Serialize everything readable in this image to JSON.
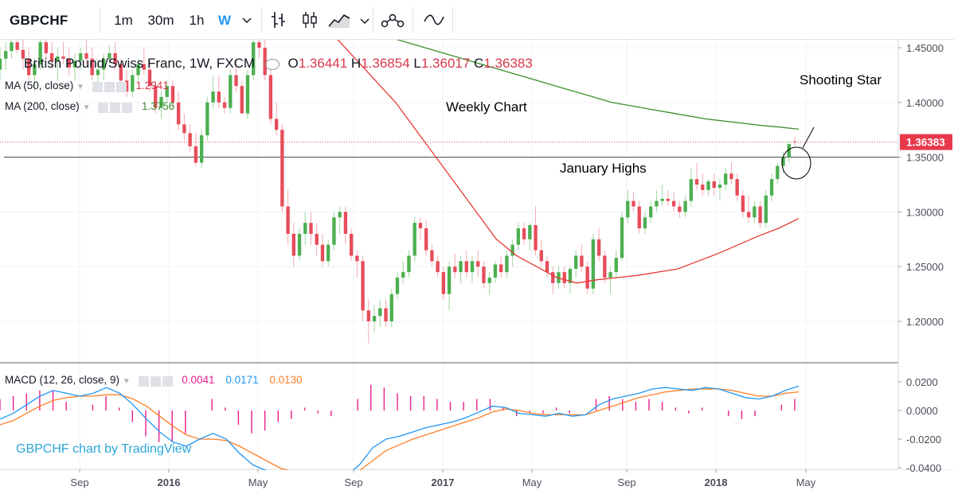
{
  "toolbar": {
    "symbol": "GBPCHF",
    "intervals": [
      "1m",
      "30m",
      "1h",
      "W"
    ],
    "active_interval": "W",
    "icons": [
      "chevron-down-icon",
      "bar-style-icon",
      "candle-style-icon",
      "area-style-icon",
      "chevron-down-icon",
      "indicators-icon",
      "compare-icon"
    ]
  },
  "legend": {
    "title": "British Pound/Swiss Franc, 1W, FXCM",
    "open_label": "O",
    "open": "1.36441",
    "high_label": "H",
    "high": "1.36854",
    "low_label": "L",
    "low": "1.36017",
    "close_label": "C",
    "close": "1.36383",
    "ma50_label": "MA (50, close)",
    "ma50_value": "1.2941",
    "ma200_label": "MA (200, close)",
    "ma200_value": "1.3756",
    "macd_label": "MACD (12, 26, close, 9)",
    "macd_hist": "0.0041",
    "macd_line": "0.0171",
    "macd_signal": "0.0130"
  },
  "annotations": {
    "weekly": "Weekly Chart",
    "star": "Shooting Star",
    "highs": "January Highs"
  },
  "watermark": "GBPCHF chart by TradingView",
  "colors": {
    "up": "#4caf50",
    "down": "#e74c5a",
    "ma50": "#e53935",
    "ma200": "#3e8e2b",
    "macd": "#2196f3",
    "signal": "#ff7f27",
    "hist": "#e91e8c",
    "price_label_bg": "#e8394b"
  },
  "chart_data": {
    "type": "candlestick",
    "price_axis": {
      "ticks": [
        "1.45000",
        "1.40000",
        "1.35000",
        "1.30000",
        "1.25000",
        "1.20000"
      ],
      "range": [
        1.16,
        1.45
      ],
      "last_price": "1.36383"
    },
    "macd_axis": {
      "ticks": [
        "0.0200",
        "0.0000",
        "-0.0200",
        "-0.0400"
      ],
      "range": [
        -0.04,
        0.025
      ]
    },
    "time_labels": [
      "Sep",
      "2016",
      "May",
      "Sep",
      "2017",
      "May",
      "Sep",
      "2018",
      "May"
    ],
    "horizontal_level": 1.35,
    "candles": [
      [
        1.43,
        1.451,
        1.42,
        1.44
      ],
      [
        1.44,
        1.455,
        1.43,
        1.447
      ],
      [
        1.447,
        1.46,
        1.44,
        1.455
      ],
      [
        1.455,
        1.47,
        1.445,
        1.448
      ],
      [
        1.448,
        1.462,
        1.43,
        1.44
      ],
      [
        1.44,
        1.45,
        1.42,
        1.425
      ],
      [
        1.425,
        1.44,
        1.41,
        1.435
      ],
      [
        1.435,
        1.46,
        1.43,
        1.455
      ],
      [
        1.455,
        1.47,
        1.44,
        1.445
      ],
      [
        1.445,
        1.455,
        1.43,
        1.438
      ],
      [
        1.438,
        1.45,
        1.42,
        1.442
      ],
      [
        1.442,
        1.455,
        1.435,
        1.44
      ],
      [
        1.44,
        1.45,
        1.425,
        1.432
      ],
      [
        1.432,
        1.445,
        1.42,
        1.438
      ],
      [
        1.438,
        1.45,
        1.43,
        1.445
      ],
      [
        1.445,
        1.46,
        1.435,
        1.44
      ],
      [
        1.44,
        1.45,
        1.42,
        1.425
      ],
      [
        1.425,
        1.44,
        1.41,
        1.43
      ],
      [
        1.43,
        1.445,
        1.42,
        1.44
      ],
      [
        1.44,
        1.452,
        1.435,
        1.445
      ],
      [
        1.445,
        1.455,
        1.43,
        1.435
      ],
      [
        1.435,
        1.44,
        1.415,
        1.42
      ],
      [
        1.42,
        1.43,
        1.405,
        1.41
      ],
      [
        1.41,
        1.43,
        1.405,
        1.425
      ],
      [
        1.425,
        1.44,
        1.42,
        1.435
      ],
      [
        1.435,
        1.45,
        1.425,
        1.43
      ],
      [
        1.43,
        1.44,
        1.41,
        1.415
      ],
      [
        1.415,
        1.42,
        1.39,
        1.395
      ],
      [
        1.395,
        1.41,
        1.385,
        1.405
      ],
      [
        1.405,
        1.42,
        1.4,
        1.415
      ],
      [
        1.415,
        1.42,
        1.395,
        1.4
      ],
      [
        1.4,
        1.41,
        1.375,
        1.38
      ],
      [
        1.38,
        1.39,
        1.365,
        1.372
      ],
      [
        1.372,
        1.38,
        1.355,
        1.36
      ],
      [
        1.36,
        1.372,
        1.342,
        1.345
      ],
      [
        1.345,
        1.375,
        1.34,
        1.37
      ],
      [
        1.37,
        1.405,
        1.365,
        1.4
      ],
      [
        1.4,
        1.425,
        1.395,
        1.41
      ],
      [
        1.41,
        1.425,
        1.395,
        1.4
      ],
      [
        1.4,
        1.405,
        1.39,
        1.395
      ],
      [
        1.395,
        1.43,
        1.39,
        1.425
      ],
      [
        1.425,
        1.44,
        1.41,
        1.415
      ],
      [
        1.415,
        1.42,
        1.39,
        1.39
      ],
      [
        1.39,
        1.43,
        1.385,
        1.425
      ],
      [
        1.425,
        1.46,
        1.42,
        1.455
      ],
      [
        1.455,
        1.465,
        1.44,
        1.45
      ],
      [
        1.45,
        1.46,
        1.42,
        1.425
      ],
      [
        1.425,
        1.43,
        1.38,
        1.385
      ],
      [
        1.385,
        1.4,
        1.37,
        1.375
      ],
      [
        1.375,
        1.38,
        1.3,
        1.305
      ],
      [
        1.305,
        1.32,
        1.27,
        1.28
      ],
      [
        1.28,
        1.29,
        1.25,
        1.26
      ],
      [
        1.26,
        1.285,
        1.255,
        1.28
      ],
      [
        1.28,
        1.3,
        1.27,
        1.29
      ],
      [
        1.29,
        1.3,
        1.27,
        1.28
      ],
      [
        1.28,
        1.29,
        1.26,
        1.27
      ],
      [
        1.27,
        1.28,
        1.25,
        1.255
      ],
      [
        1.255,
        1.275,
        1.25,
        1.27
      ],
      [
        1.27,
        1.3,
        1.265,
        1.295
      ],
      [
        1.295,
        1.305,
        1.28,
        1.3
      ],
      [
        1.3,
        1.305,
        1.27,
        1.28
      ],
      [
        1.28,
        1.285,
        1.255,
        1.26
      ],
      [
        1.26,
        1.265,
        1.24,
        1.255
      ],
      [
        1.255,
        1.26,
        1.2,
        1.21
      ],
      [
        1.21,
        1.22,
        1.18,
        1.2
      ],
      [
        1.2,
        1.215,
        1.19,
        1.205
      ],
      [
        1.205,
        1.22,
        1.195,
        1.212
      ],
      [
        1.212,
        1.22,
        1.195,
        1.2
      ],
      [
        1.2,
        1.23,
        1.195,
        1.225
      ],
      [
        1.225,
        1.245,
        1.22,
        1.24
      ],
      [
        1.24,
        1.255,
        1.235,
        1.245
      ],
      [
        1.245,
        1.265,
        1.24,
        1.26
      ],
      [
        1.26,
        1.295,
        1.255,
        1.29
      ],
      [
        1.29,
        1.295,
        1.275,
        1.285
      ],
      [
        1.285,
        1.292,
        1.26,
        1.265
      ],
      [
        1.265,
        1.27,
        1.25,
        1.255
      ],
      [
        1.255,
        1.26,
        1.24,
        1.245
      ],
      [
        1.245,
        1.25,
        1.22,
        1.225
      ],
      [
        1.225,
        1.255,
        1.21,
        1.25
      ],
      [
        1.25,
        1.262,
        1.24,
        1.245
      ],
      [
        1.245,
        1.26,
        1.235,
        1.255
      ],
      [
        1.255,
        1.265,
        1.24,
        1.245
      ],
      [
        1.245,
        1.26,
        1.235,
        1.255
      ],
      [
        1.255,
        1.265,
        1.24,
        1.25
      ],
      [
        1.25,
        1.255,
        1.23,
        1.235
      ],
      [
        1.235,
        1.245,
        1.225,
        1.24
      ],
      [
        1.24,
        1.255,
        1.235,
        1.252
      ],
      [
        1.252,
        1.26,
        1.24,
        1.245
      ],
      [
        1.245,
        1.265,
        1.24,
        1.26
      ],
      [
        1.26,
        1.275,
        1.25,
        1.27
      ],
      [
        1.27,
        1.29,
        1.265,
        1.285
      ],
      [
        1.285,
        1.29,
        1.27,
        1.275
      ],
      [
        1.275,
        1.29,
        1.265,
        1.288
      ],
      [
        1.288,
        1.305,
        1.26,
        1.265
      ],
      [
        1.265,
        1.275,
        1.25,
        1.255
      ],
      [
        1.255,
        1.26,
        1.24,
        1.245
      ],
      [
        1.245,
        1.25,
        1.225,
        1.235
      ],
      [
        1.235,
        1.25,
        1.23,
        1.245
      ],
      [
        1.245,
        1.25,
        1.23,
        1.235
      ],
      [
        1.235,
        1.25,
        1.225,
        1.248
      ],
      [
        1.248,
        1.265,
        1.24,
        1.26
      ],
      [
        1.26,
        1.27,
        1.245,
        1.25
      ],
      [
        1.25,
        1.255,
        1.225,
        1.23
      ],
      [
        1.23,
        1.28,
        1.225,
        1.275
      ],
      [
        1.275,
        1.285,
        1.255,
        1.26
      ],
      [
        1.26,
        1.265,
        1.235,
        1.24
      ],
      [
        1.24,
        1.25,
        1.225,
        1.245
      ],
      [
        1.245,
        1.265,
        1.24,
        1.258
      ],
      [
        1.258,
        1.3,
        1.255,
        1.295
      ],
      [
        1.295,
        1.32,
        1.29,
        1.31
      ],
      [
        1.31,
        1.318,
        1.3,
        1.305
      ],
      [
        1.305,
        1.31,
        1.28,
        1.285
      ],
      [
        1.285,
        1.3,
        1.28,
        1.295
      ],
      [
        1.295,
        1.31,
        1.29,
        1.305
      ],
      [
        1.305,
        1.32,
        1.3,
        1.31
      ],
      [
        1.31,
        1.325,
        1.305,
        1.312
      ],
      [
        1.312,
        1.32,
        1.305,
        1.31
      ],
      [
        1.31,
        1.318,
        1.3,
        1.305
      ],
      [
        1.305,
        1.31,
        1.295,
        1.3
      ],
      [
        1.3,
        1.315,
        1.295,
        1.31
      ],
      [
        1.31,
        1.34,
        1.305,
        1.33
      ],
      [
        1.33,
        1.345,
        1.32,
        1.325
      ],
      [
        1.325,
        1.335,
        1.315,
        1.32
      ],
      [
        1.32,
        1.33,
        1.315,
        1.328
      ],
      [
        1.328,
        1.335,
        1.315,
        1.322
      ],
      [
        1.322,
        1.33,
        1.31,
        1.325
      ],
      [
        1.325,
        1.34,
        1.32,
        1.335
      ],
      [
        1.335,
        1.345,
        1.325,
        1.33
      ],
      [
        1.33,
        1.335,
        1.31,
        1.315
      ],
      [
        1.315,
        1.32,
        1.295,
        1.3
      ],
      [
        1.3,
        1.315,
        1.29,
        1.295
      ],
      [
        1.295,
        1.31,
        1.29,
        1.305
      ],
      [
        1.305,
        1.31,
        1.285,
        1.29
      ],
      [
        1.29,
        1.32,
        1.285,
        1.315
      ],
      [
        1.315,
        1.335,
        1.31,
        1.33
      ],
      [
        1.33,
        1.345,
        1.325,
        1.342
      ],
      [
        1.342,
        1.355,
        1.335,
        1.35
      ],
      [
        1.35,
        1.365,
        1.345,
        1.362
      ],
      [
        1.36441,
        1.36854,
        1.36017,
        1.36383
      ]
    ],
    "ma50": [
      1.52,
      1.5,
      1.48,
      1.46,
      1.44,
      1.42,
      1.4,
      1.375,
      1.35,
      1.325,
      1.3,
      1.275,
      1.26,
      1.25,
      1.24,
      1.235,
      1.238,
      1.24,
      1.242,
      1.245,
      1.248,
      1.255,
      1.262,
      1.27,
      1.278,
      1.285,
      1.294
    ],
    "ma200": [
      1.47,
      1.465,
      1.46,
      1.455,
      1.45,
      1.445,
      1.44,
      1.435,
      1.43,
      1.425,
      1.42,
      1.415,
      1.41,
      1.405,
      1.4,
      1.397,
      1.394,
      1.391,
      1.388,
      1.385,
      1.383,
      1.381,
      1.379,
      1.3775,
      1.3756
    ],
    "macd_line": [
      -0.006,
      -0.002,
      0.004,
      0.01,
      0.014,
      0.012,
      0.01,
      0.012,
      0.016,
      0.012,
      0.004,
      -0.006,
      -0.015,
      -0.022,
      -0.025,
      -0.02,
      -0.016,
      -0.02,
      -0.03,
      -0.038,
      -0.042,
      -0.044,
      -0.046,
      -0.045,
      -0.048,
      -0.05,
      -0.046,
      -0.038,
      -0.026,
      -0.02,
      -0.018,
      -0.015,
      -0.012,
      -0.01,
      -0.008,
      -0.005,
      -0.001,
      0.003,
      0.002,
      -0.002,
      -0.003,
      -0.004,
      -0.002,
      -0.004,
      -0.003,
      0.004,
      0.008,
      0.01,
      0.012,
      0.015,
      0.016,
      0.015,
      0.014,
      0.016,
      0.015,
      0.012,
      0.009,
      0.008,
      0.01,
      0.014,
      0.0171
    ],
    "macd_signal": [
      -0.01,
      -0.007,
      -0.002,
      0.003,
      0.007,
      0.009,
      0.01,
      0.01,
      0.011,
      0.011,
      0.008,
      0.003,
      -0.004,
      -0.011,
      -0.017,
      -0.02,
      -0.02,
      -0.021,
      -0.025,
      -0.03,
      -0.035,
      -0.04,
      -0.043,
      -0.046,
      -0.047,
      -0.048,
      -0.046,
      -0.042,
      -0.035,
      -0.028,
      -0.024,
      -0.02,
      -0.017,
      -0.014,
      -0.011,
      -0.008,
      -0.005,
      -0.001,
      0.001,
      0.0,
      -0.002,
      -0.003,
      -0.003,
      -0.003,
      -0.003,
      0.0,
      0.003,
      0.006,
      0.009,
      0.011,
      0.013,
      0.014,
      0.015,
      0.015,
      0.015,
      0.014,
      0.012,
      0.01,
      0.01,
      0.012,
      0.013
    ]
  }
}
